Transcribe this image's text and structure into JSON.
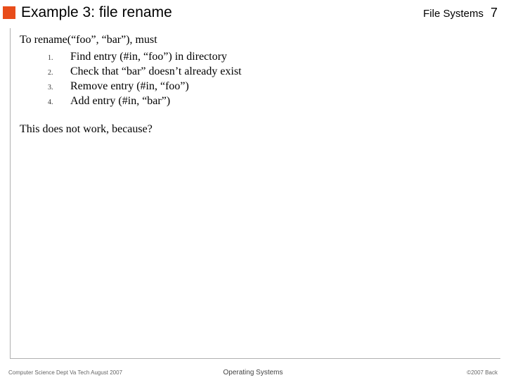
{
  "header": {
    "title": "Example 3: file rename",
    "topic": "File Systems",
    "page": "7"
  },
  "content": {
    "intro": "To rename(“foo”, “bar”), must",
    "steps": [
      {
        "num": "1.",
        "text": "Find entry (#in, “foo”) in directory"
      },
      {
        "num": "2.",
        "text": "Check that “bar” doesn’t already exist"
      },
      {
        "num": "3.",
        "text": "Remove entry (#in, “foo”)"
      },
      {
        "num": "4.",
        "text": "Add entry (#in, “bar”)"
      }
    ],
    "question": "This does not work, because?"
  },
  "footer": {
    "left": "Computer Science Dept Va Tech August 2007",
    "center": "Operating Systems",
    "right": "©2007 Back"
  },
  "colors": {
    "accent": "#e84c1a",
    "border": "#b0b0b0",
    "text": "#000000",
    "footer_text": "#666666",
    "background": "#ffffff"
  }
}
